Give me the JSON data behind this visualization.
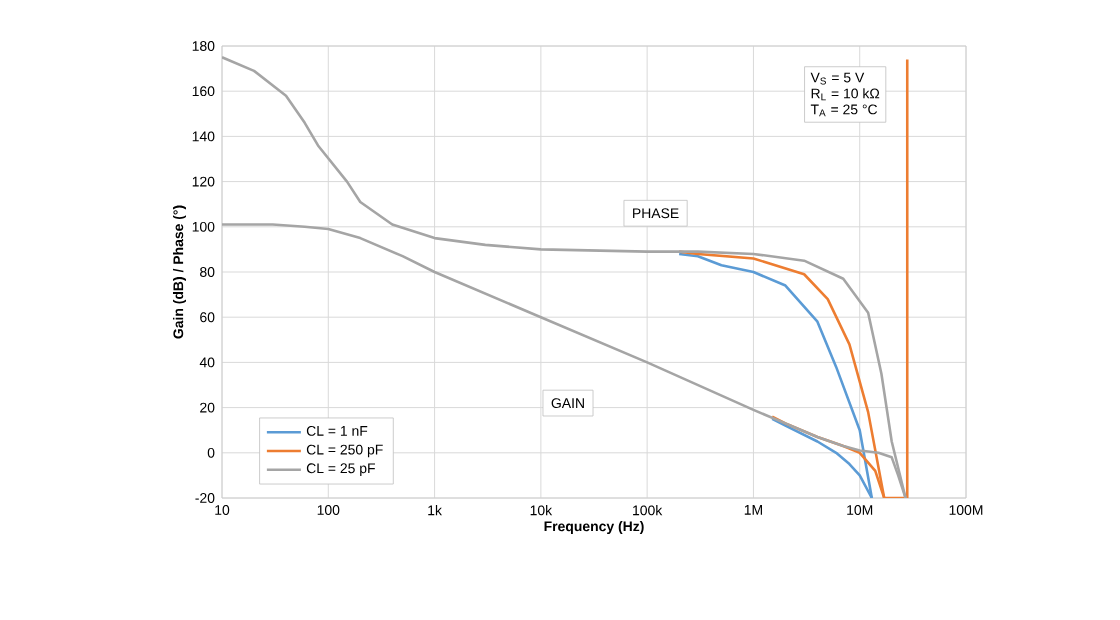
{
  "chart_data": {
    "type": "line",
    "xlabel": "Frequency (Hz)",
    "ylabel": "Gain (dB) / Phase (°)",
    "log": "x",
    "grid": true,
    "legend": "bottom left",
    "xlim": [
      10,
      100000000
    ],
    "xticks": [
      10,
      100,
      {
        "value": 1000,
        "label": "1k"
      },
      {
        "value": 10000,
        "label": "10k"
      },
      {
        "value": 100000,
        "label": "100k"
      },
      {
        "value": 1000000,
        "label": "1M"
      },
      {
        "value": 10000000,
        "label": "10M"
      },
      {
        "value": 100000000,
        "label": "100M"
      }
    ],
    "ylim": [
      -20,
      180
    ],
    "yticks": [
      -20,
      0,
      20,
      40,
      60,
      80,
      100,
      120,
      140,
      160,
      180
    ],
    "annotations": [
      "V$_{S}$ = 5 V",
      "R$_{L}$ = 10 kΩ",
      "T$_{A}$ = 25 °C",
      "PHASE",
      "GAIN"
    ],
    "series": [
      {
        "name": "CL = 1 nF",
        "color": "#5b9bd5",
        "x": [
          200000,
          300000,
          500000,
          1000000,
          2000000,
          4000000,
          6000000,
          10000000,
          13000000
        ],
        "values": [
          88,
          87,
          83,
          80,
          74,
          58,
          38,
          10,
          -20
        ]
      },
      {
        "name": "CL = 250 pF",
        "color": "#ed7d31",
        "x": [
          200000,
          300000,
          1000000,
          3000000,
          5000000,
          8000000,
          12000000,
          17000000,
          28000000,
          28000000
        ],
        "values": [
          89,
          88,
          86,
          79,
          68,
          48,
          18,
          -20,
          -20,
          174
        ]
      },
      {
        "name": "CL = 25 pF",
        "color": "#a5a5a5",
        "x": [
          10,
          20,
          40,
          60,
          80,
          150,
          200,
          400,
          1000,
          3000,
          10000,
          100000,
          300000,
          1000000,
          3000000,
          7000000,
          12000000,
          16000000,
          20000000,
          27000000
        ],
        "values": [
          175,
          169,
          158,
          146,
          136,
          120,
          111,
          101,
          95,
          92,
          90,
          89,
          89,
          88,
          85,
          77,
          62,
          35,
          5,
          -20
        ]
      },
      {
        "color": "#5b9bd5",
        "x": [
          1500000,
          2000000,
          4000000,
          6000000,
          8000000,
          10000000,
          13000000
        ],
        "values": [
          15,
          12,
          5,
          0,
          -5,
          -10,
          -20
        ]
      },
      {
        "color": "#ed7d31",
        "x": [
          1500000,
          2000000,
          4000000,
          7000000,
          10000000,
          14000000,
          17000000
        ],
        "values": [
          16,
          13,
          7,
          3,
          0,
          -8,
          -20
        ]
      },
      {
        "color": "#a5a5a5",
        "x": [
          10,
          30,
          60,
          100,
          200,
          500,
          1000,
          10000,
          100000,
          1000000,
          2000000,
          4000000,
          7000000,
          10000000,
          15000000,
          20000000,
          23000000,
          27000000
        ],
        "values": [
          101,
          101,
          100,
          99,
          95,
          87,
          80,
          60,
          40,
          19,
          13,
          7,
          3,
          1,
          0,
          -2,
          -10,
          -20
        ]
      }
    ]
  }
}
